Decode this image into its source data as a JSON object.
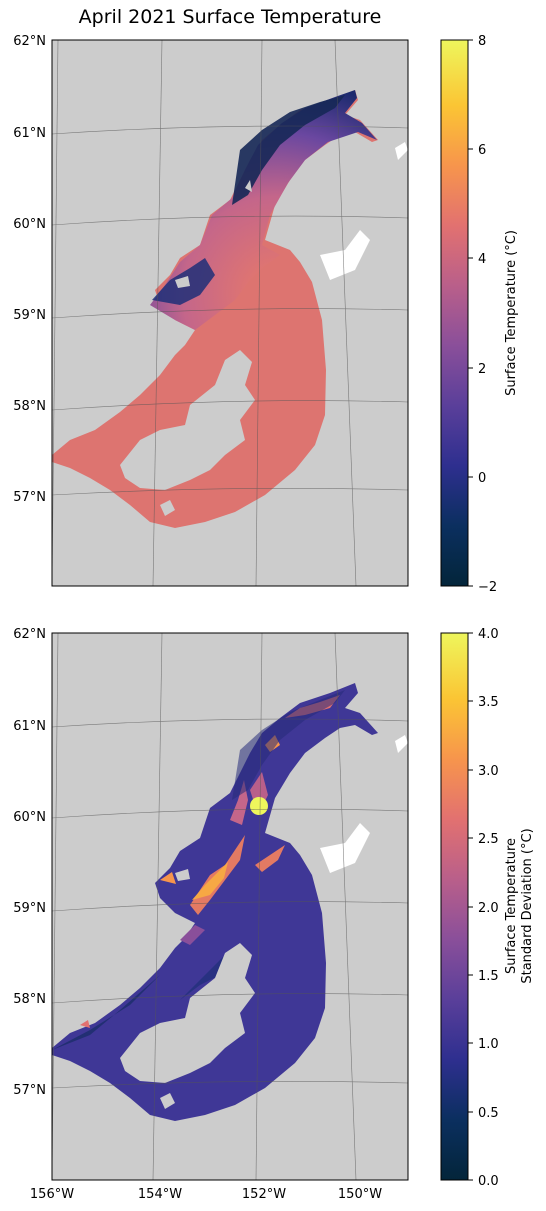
{
  "title": "April 2021 Surface Temperature",
  "colors": {
    "land": "#cccccc",
    "frame": "#000000",
    "grid": "#555555",
    "cmap": [
      "#03253a",
      "#0b2f5f",
      "#2e2f8f",
      "#5a3f9a",
      "#8a4f9a",
      "#b95f8a",
      "#e27170",
      "#f7954c",
      "#fbc534",
      "#eef65c"
    ]
  },
  "lat_labels": [
    "62°N",
    "61°N",
    "60°N",
    "59°N",
    "58°N",
    "57°N"
  ],
  "lon_labels": [
    "156°W",
    "154°W",
    "152°W",
    "150°W"
  ],
  "panels": [
    {
      "id": "temperature",
      "colorbar": {
        "label": "Surface Temperature (°C)",
        "range": [
          -2,
          8
        ],
        "ticks": [
          "8",
          "6",
          "4",
          "2",
          "0",
          "−2"
        ]
      }
    },
    {
      "id": "std",
      "colorbar": {
        "label_line1": "Surface Temperature",
        "label_line2": "Standard Deviation (°C)",
        "range": [
          0,
          4
        ],
        "ticks": [
          "4.0",
          "3.5",
          "3.0",
          "2.5",
          "2.0",
          "1.5",
          "1.0",
          "0.5",
          "0.0"
        ]
      }
    }
  ]
}
